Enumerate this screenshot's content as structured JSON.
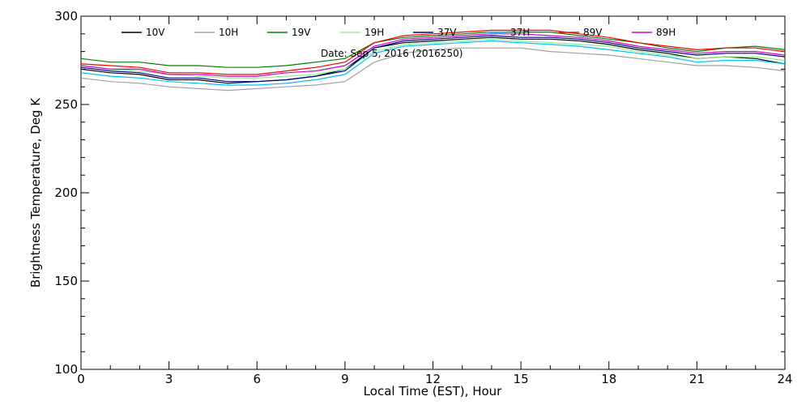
{
  "chart_data": {
    "type": "line",
    "xlabel": "Local Time (EST), Hour",
    "ylabel": "Brightness Temperature, Deg K",
    "annotation": "Date: Sep  5, 2016 (2016250)",
    "xlim": [
      0,
      24
    ],
    "ylim": [
      100,
      300
    ],
    "xticks": [
      0,
      3,
      6,
      9,
      12,
      15,
      18,
      21,
      24
    ],
    "yticks": [
      100,
      150,
      200,
      250,
      300
    ],
    "grid": false,
    "legend_position": "top",
    "x": [
      0,
      1,
      2,
      3,
      4,
      5,
      6,
      7,
      8,
      9,
      10,
      11,
      12,
      13,
      14,
      15,
      16,
      17,
      18,
      19,
      20,
      21,
      22,
      23,
      24
    ],
    "series": [
      {
        "name": "10V",
        "color": "#000000",
        "values": [
          270,
          268,
          267,
          264,
          264,
          262,
          263,
          264,
          266,
          270,
          282,
          285,
          286,
          287,
          288,
          287,
          287,
          286,
          284,
          281,
          279,
          276,
          277,
          276,
          273
        ]
      },
      {
        "name": "10H",
        "color": "#a0a0a0",
        "values": [
          265,
          263,
          262,
          260,
          259,
          258,
          259,
          260,
          261,
          263,
          274,
          279,
          281,
          282,
          282,
          282,
          280,
          279,
          278,
          276,
          274,
          272,
          272,
          271,
          269
        ]
      },
      {
        "name": "19V",
        "color": "#008000",
        "values": [
          276,
          274,
          274,
          272,
          272,
          271,
          271,
          272,
          274,
          276,
          285,
          288,
          289,
          290,
          291,
          291,
          291,
          289,
          287,
          285,
          282,
          280,
          282,
          283,
          281
        ]
      },
      {
        "name": "19H",
        "color": "#90ee90",
        "values": [
          272,
          270,
          269,
          267,
          266,
          265,
          265,
          266,
          267,
          270,
          280,
          284,
          285,
          286,
          287,
          286,
          285,
          284,
          283,
          280,
          278,
          276,
          277,
          277,
          275
        ]
      },
      {
        "name": "37V",
        "color": "#00008b",
        "values": [
          271,
          269,
          268,
          265,
          265,
          263,
          263,
          264,
          266,
          269,
          282,
          286,
          287,
          288,
          289,
          288,
          288,
          287,
          285,
          282,
          280,
          278,
          279,
          279,
          277
        ]
      },
      {
        "name": "37H",
        "color": "#00bfff",
        "values": [
          268,
          266,
          265,
          263,
          262,
          261,
          261,
          262,
          264,
          267,
          279,
          283,
          284,
          285,
          286,
          285,
          284,
          283,
          281,
          279,
          277,
          274,
          275,
          275,
          273
        ]
      },
      {
        "name": "89V",
        "color": "#ff0000",
        "values": [
          273,
          272,
          271,
          268,
          268,
          267,
          267,
          269,
          271,
          274,
          285,
          289,
          290,
          291,
          292,
          292,
          292,
          290,
          288,
          285,
          283,
          281,
          282,
          282,
          280
        ]
      },
      {
        "name": "89H",
        "color": "#cc00cc",
        "values": [
          272,
          270,
          270,
          267,
          267,
          266,
          266,
          268,
          269,
          272,
          283,
          287,
          288,
          289,
          290,
          290,
          289,
          288,
          286,
          283,
          281,
          279,
          280,
          280,
          278
        ]
      }
    ]
  }
}
